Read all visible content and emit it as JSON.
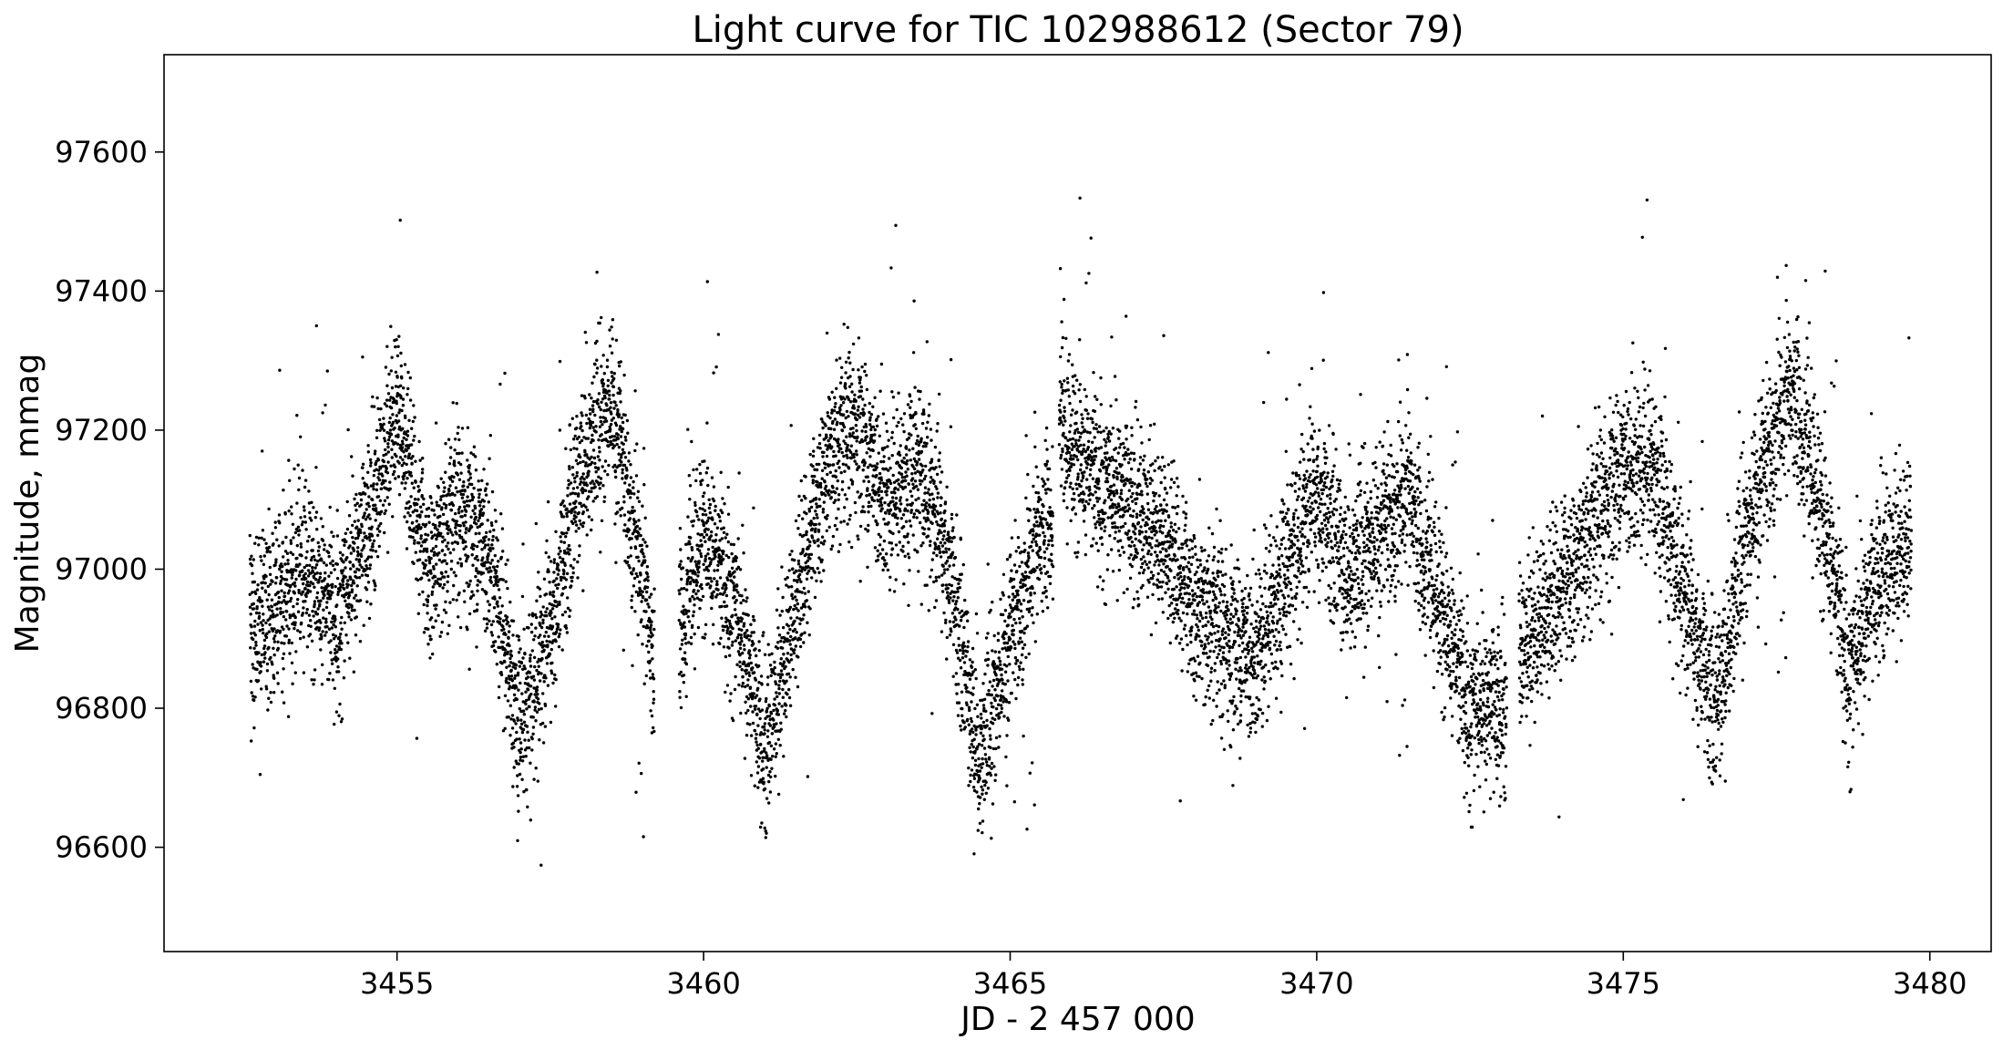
{
  "chart_data": {
    "type": "scatter",
    "title": "Light curve for TIC 102988612 (Sector 79)",
    "xlabel": "JD - 2 457 000",
    "ylabel": "Magnitude, mmag",
    "xlim": [
      3451.2,
      3481.0
    ],
    "ylim": [
      96450,
      97740
    ],
    "x_ticks": [
      3455,
      3460,
      3465,
      3470,
      3475,
      3480
    ],
    "x_tick_labels": [
      "3455",
      "3460",
      "3465",
      "3470",
      "3475",
      "3480"
    ],
    "y_ticks": [
      96600,
      96800,
      97000,
      97200,
      97400,
      97600
    ],
    "y_tick_labels": [
      "96600",
      "96800",
      "97000",
      "97200",
      "97400",
      "97600"
    ],
    "grid": false,
    "marker_color": "#000000",
    "segments": [
      {
        "x_start": 3452.6,
        "x_end": 3459.2
      },
      {
        "x_start": 3459.6,
        "x_end": 3465.7
      },
      {
        "x_start": 3465.8,
        "x_end": 3473.1
      },
      {
        "x_start": 3473.3,
        "x_end": 3479.7
      }
    ],
    "series": [
      {
        "x": [
          3452.6,
          3453.0,
          3453.5,
          3454.0,
          3454.5,
          3455.0,
          3455.5,
          3456.0,
          3456.5,
          3457.0,
          3457.5,
          3458.0,
          3458.5,
          3459.0,
          3459.2,
          3459.6,
          3460.0,
          3460.5,
          3461.0,
          3461.5,
          3462.0,
          3462.5,
          3463.0,
          3463.5,
          3464.0,
          3464.5,
          3465.0,
          3465.7,
          3465.8,
          3466.2,
          3466.8,
          3467.5,
          3468.0,
          3468.5,
          3469.0,
          3469.5,
          3470.0,
          3470.5,
          3471.0,
          3471.5,
          3472.0,
          3472.5,
          3473.1,
          3473.3,
          3473.8,
          3474.5,
          3475.0,
          3475.5,
          3476.0,
          3476.5,
          3477.0,
          3477.5,
          3477.8,
          3478.3,
          3478.7,
          3479.2,
          3479.7
        ],
        "y": [
          96900,
          96950,
          97000,
          96930,
          97050,
          97240,
          97000,
          97080,
          97030,
          96780,
          96900,
          97150,
          97240,
          96980,
          96850,
          96920,
          97050,
          96950,
          96740,
          96950,
          97150,
          97200,
          97100,
          97150,
          97000,
          96730,
          96900,
          97100,
          97200,
          97150,
          97100,
          97050,
          96950,
          96900,
          96880,
          97000,
          97100,
          97000,
          97050,
          97100,
          96950,
          96800,
          96800,
          96880,
          96950,
          97050,
          97150,
          97150,
          96950,
          96800,
          97050,
          97200,
          97250,
          97050,
          96850,
          97000,
          97050
        ]
      }
    ]
  }
}
